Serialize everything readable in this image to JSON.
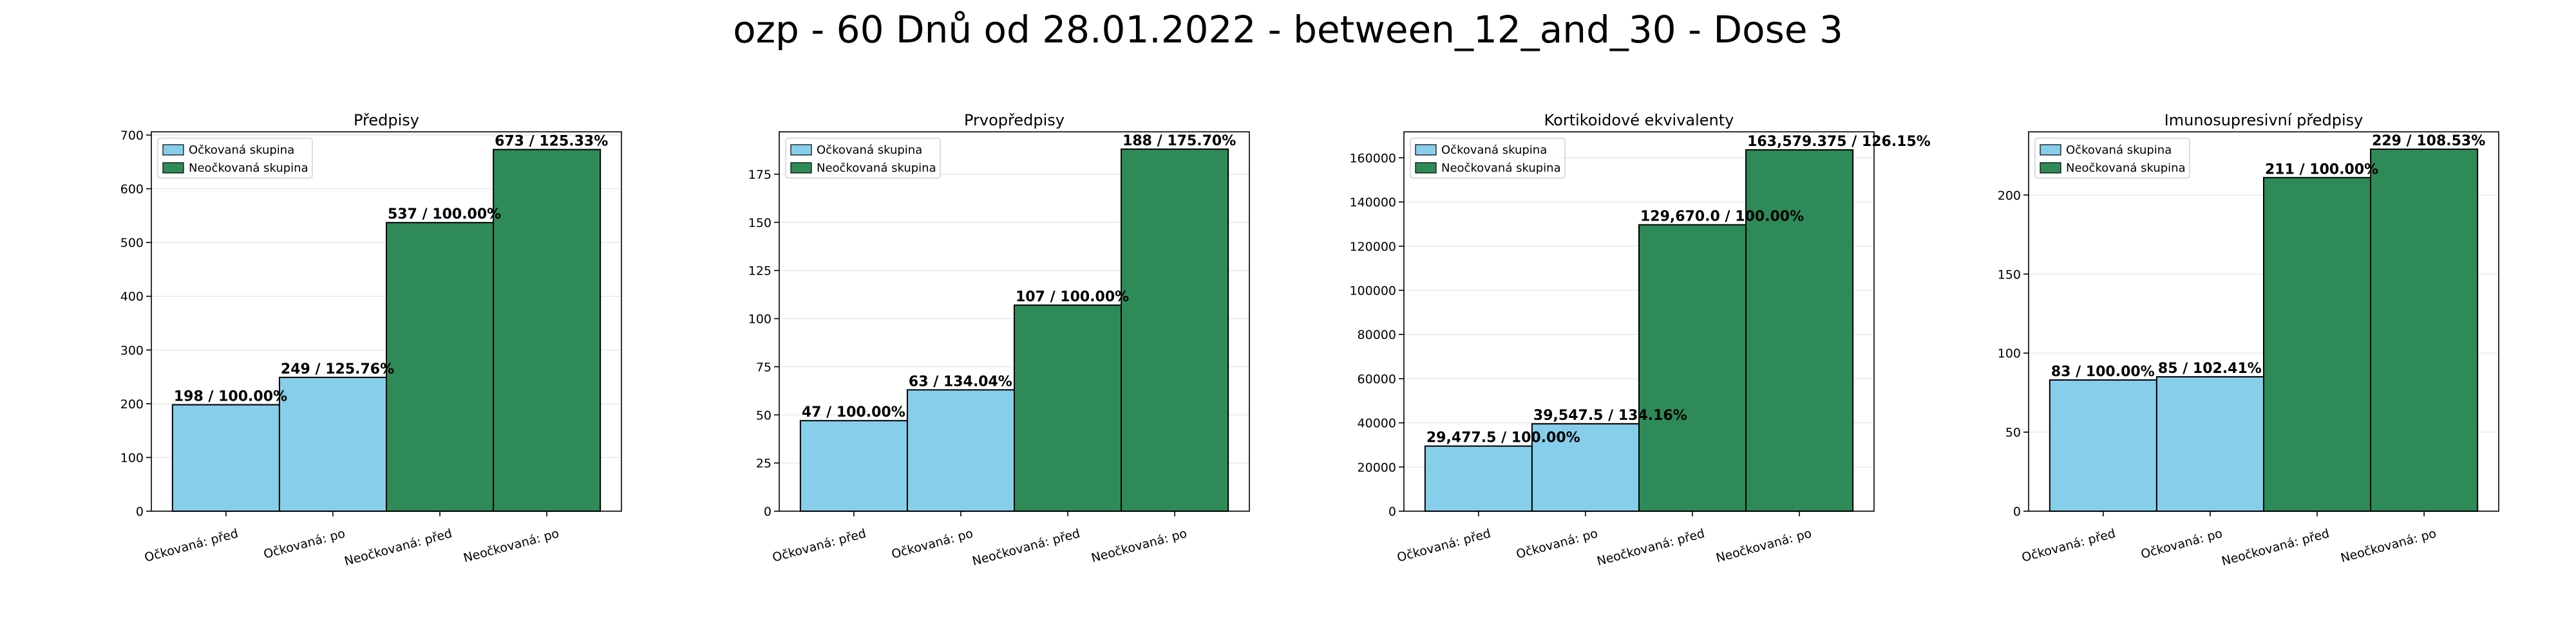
{
  "suptitle": "ozp - 60 Dnů od 28.01.2022 - between_12_and_30 - Dose 3",
  "colors": {
    "vaccinated": "#87ceeb",
    "unvaccinated": "#2e8b57"
  },
  "legend": {
    "vaccinated": "Očkovaná skupina",
    "unvaccinated": "Neočkovaná skupina",
    "placement": "upper-left"
  },
  "chart_data": [
    {
      "type": "bar",
      "title": "Předpisy",
      "categories": [
        "Očkovaná: před",
        "Očkovaná: po",
        "Neočkovaná: před",
        "Neočkovaná: po"
      ],
      "values": [
        198,
        249,
        537,
        673
      ],
      "labels": [
        "198 / 100.00%",
        "249 / 125.76%",
        "537 / 100.00%",
        "673 / 125.33%"
      ],
      "ylim": [
        0,
        706
      ],
      "yticks": [
        0,
        100,
        200,
        300,
        400,
        500,
        600,
        700
      ],
      "grid": "y"
    },
    {
      "type": "bar",
      "title": "Prvopředpisy",
      "categories": [
        "Očkovaná: před",
        "Očkovaná: po",
        "Neočkovaná: před",
        "Neočkovaná: po"
      ],
      "values": [
        47,
        63,
        107,
        188
      ],
      "labels": [
        "47 / 100.00%",
        "63 / 134.04%",
        "107 / 100.00%",
        "188 / 175.70%"
      ],
      "ylim": [
        0,
        197
      ],
      "yticks": [
        0,
        25,
        50,
        75,
        100,
        125,
        150,
        175
      ],
      "grid": "y"
    },
    {
      "type": "bar",
      "title": "Kortikoidové ekvivalenty",
      "categories": [
        "Očkovaná: před",
        "Očkovaná: po",
        "Neočkovaná: před",
        "Neočkovaná: po"
      ],
      "values": [
        29477.5,
        39547.5,
        129670.0,
        163579.375
      ],
      "labels": [
        "29,477.5 / 100.00%",
        "39,547.5 / 134.16%",
        "129,670.0 / 100.00%",
        "163,579.375 / 126.15%"
      ],
      "ylim": [
        0,
        171758
      ],
      "yticks": [
        0,
        20000,
        40000,
        60000,
        80000,
        100000,
        120000,
        140000,
        160000
      ],
      "grid": "y"
    },
    {
      "type": "bar",
      "title": "Imunosupresivní předpisy",
      "categories": [
        "Očkovaná: před",
        "Očkovaná: po",
        "Neočkovaná: před",
        "Neočkovaná: po"
      ],
      "values": [
        83,
        85,
        211,
        229
      ],
      "labels": [
        "83 / 100.00%",
        "85 / 102.41%",
        "211 / 100.00%",
        "229 / 108.53%"
      ],
      "ylim": [
        0,
        240
      ],
      "yticks": [
        0,
        50,
        100,
        150,
        200
      ],
      "grid": "y"
    }
  ]
}
